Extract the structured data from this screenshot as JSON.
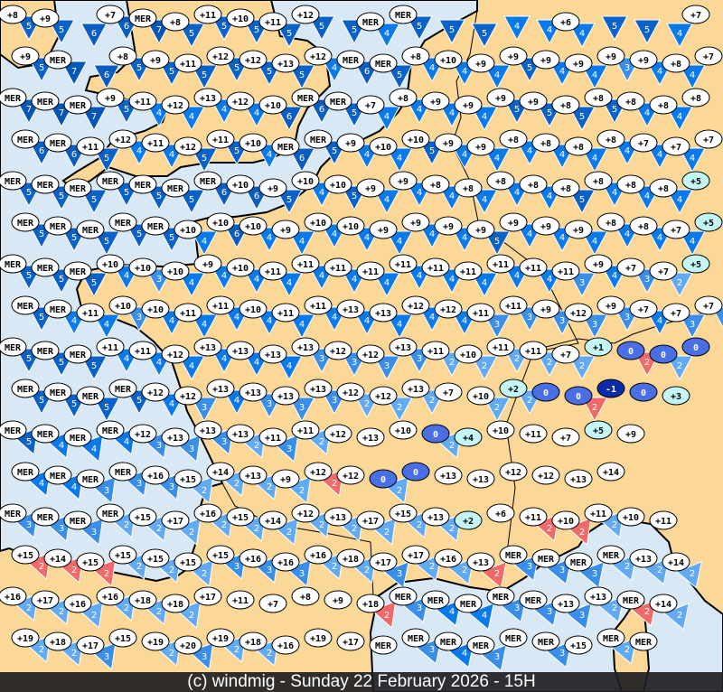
{
  "footer": {
    "text": "(c) windmig - Sunday 22 February 2026 - 15H"
  },
  "colors": {
    "sea": "#d8e8f4",
    "land": "#fcd898",
    "coast": "#000000",
    "wind": {
      "2": "#62aaf2",
      "3": "#3a8ee8",
      "4": "#0a7aea",
      "5": "#0a62c8",
      "6": "#0a5cc0",
      "7": "#0656b6"
    },
    "gust_wind": "#f06a6a",
    "temp_default": "#ffffff",
    "temp_cold": "#c4f6f6",
    "temp_zero": "#4a6ee4",
    "temp_negative": "#0a2aa8"
  },
  "legend_notes": {
    "sea_label": "MER"
  },
  "stations": [
    [
      "+8/5",
      "+9/5",
      "/6",
      "+7/6",
      "MER/7",
      "+8/5",
      "+11/5",
      "+10/5",
      "+11/5",
      "+12/5",
      "/5",
      "MER/4",
      "MER/5",
      "/5",
      "/5",
      "/4",
      "/4",
      "+6/4",
      "/5",
      "/5",
      "/4",
      "+7/"
    ],
    [
      "+9/5",
      "MER/7",
      "/6",
      "+8/5",
      "+9/5",
      "+11/5",
      "+12/5",
      "+12/5",
      "+13/5",
      "+12/4",
      "MER/6",
      "MER/5",
      "+8/4",
      "+10/4",
      "+9/4",
      "+9/5",
      "+9/4",
      "+9/4",
      "+9/3",
      "+9/4",
      "+8/4",
      "+7/"
    ],
    [
      "MER/7",
      "MER/7",
      "MER/7",
      "+9/5",
      "+11/4",
      "+12/4",
      "+13/4",
      "+12/4",
      "+10/6",
      "MER/6",
      "MER/5",
      "+7/4",
      "+8/4",
      "+9/4",
      "+9/4",
      "+9/5",
      "+9/5",
      "+8/5",
      "+8/5",
      "+8/4",
      "+8/4",
      "+8/"
    ],
    [
      "MER/6",
      "MER/6",
      "+11/5",
      "+12/4",
      "+11/4",
      "+12/5",
      "+11/5",
      "+10/4",
      "MER/6",
      "MER/5",
      "+9/4",
      "+10/4",
      "+10/5",
      "+9/4",
      "+9/4",
      "+8/4",
      "+8/4",
      "+8/4",
      "+8/4",
      "+7/4",
      "+7/4",
      "+7/"
    ],
    [
      "MER/5",
      "MER/5",
      "MER/5",
      "MER/5",
      "MER/5",
      "MER/5",
      "MER/6",
      "+10/6",
      "+9/5",
      "+10/4",
      "+10/5",
      "+9/4",
      "+9/4",
      "+8/4",
      "+8/4",
      "+8/4",
      "+8/4",
      "+8/5",
      "+8/4",
      "+8/4",
      "+8/4",
      "+5/"
    ],
    [
      "MER/5",
      "MER/5",
      "MER/5",
      "MER/5",
      "MER/5",
      "+10/4",
      "+10/6",
      "+10/4",
      "+9/4",
      "+10/4",
      "+10/4",
      "+9/4",
      "+9/4",
      "+9/4",
      "+9/5",
      "+9/4",
      "+9/4",
      "+9/4",
      "+8/4",
      "+8/4",
      "+7/4",
      "+5/"
    ],
    [
      "MER/5",
      "MER/5",
      "MER/5",
      "+10/4",
      "+10/3",
      "+10/4",
      "+9/4",
      "+10/4",
      "+11/4",
      "+11/4",
      "+11/4",
      "+11/4",
      "+11/4",
      "+11/4",
      "+11/4",
      "+11/4",
      "+11/4",
      "+11/3",
      "+9/4",
      "+7/3",
      "+7/2",
      "+5/"
    ],
    [
      "MER/5",
      "MER/4",
      "+11/4",
      "+10/3",
      "+10/4",
      "+11/4",
      "+11/4",
      "+10/4",
      "+11/4",
      "+11/4",
      "+13/4",
      "+13/4",
      "+12/4",
      "+12/4",
      "+11/3",
      "+11/3",
      "+9/3",
      "+12/3",
      "+9/3",
      "+7/4",
      "+7/3",
      "+7/3"
    ],
    [
      "MER/5",
      "MER/5",
      "MER/5",
      "+11/4",
      "+11/4",
      "+12/4",
      "+13/4",
      "+13/4",
      "+13/4",
      "+13/3",
      "+12/3",
      "+12/3",
      "+13/3",
      "+11/2",
      "+10/2",
      "+11/2",
      "+11/2",
      "+7/2",
      "+1/",
      "0/2r",
      "0/2",
      "0/"
    ],
    [
      "MER/5",
      "MER/5",
      "MER/5",
      "MER/5",
      "+12/4",
      "+12/3",
      "+13/4",
      "+13/3",
      "+13/3",
      "+13/3",
      "+12/2",
      "+12/2",
      "+13/2",
      "+7/",
      "+10/2",
      "+2/2",
      "0/",
      "0/2r",
      "-1/",
      "0/",
      "+3/",
      ""
    ],
    [
      "MER/5",
      "MER/4",
      "MER/4",
      "MER/4",
      "+12/3",
      "+13/3",
      "+13/3",
      "+13/2",
      "+11/3",
      "+11/2",
      "+12/",
      "+13/",
      "+10/",
      "0/2",
      "+4/",
      "+10/",
      "+11/",
      "+7/",
      "+5/",
      "+9/",
      "",
      ""
    ],
    [
      "MER/4",
      "MER/4",
      "MER/3",
      "MER/3",
      "+16/3",
      "+15/2",
      "+14/2",
      "+13/2",
      "+9/2",
      "+12/2r",
      "+12/",
      "0/2",
      "0/",
      "+13/",
      "+13/",
      "+12/",
      "+12/",
      "+13/",
      "+14/",
      "",
      "",
      ""
    ],
    [
      "MER/3",
      "MER/3",
      "MER/3",
      "MER/2",
      "+15/2",
      "+17/2",
      "+16/2",
      "+15/2",
      "+14/2",
      "+12/2",
      "+13/2",
      "+17/2",
      "+15/2",
      "+13/2",
      "+2/",
      "+6/",
      "+11/2r",
      "+10/2r",
      "+11/2",
      "+10/",
      "+11/",
      ""
    ],
    [
      "+15/2r",
      "+14/2r",
      "+15/2r",
      "+15/2",
      "+15/2",
      "+15/2",
      "+15/3",
      "+16/3",
      "+16/3",
      "+16/2",
      "+18/2",
      "+17/3",
      "+17/2",
      "+16/2",
      "+13/2r",
      "MER/3",
      "MER/3",
      "MER/3",
      "MER/2",
      "+13/2",
      "+14/2",
      ""
    ],
    [
      "+16/2",
      "+17/2",
      "+16/2",
      "+16/2",
      "+18/2",
      "+18/2",
      "+17/",
      "+11/",
      "+7/",
      "+8/",
      "+9/",
      "+18/2r",
      "MER/3",
      "MER/4",
      "MER/4",
      "MER/3",
      "MER/3",
      "+13/3",
      "+13/2",
      "MER/2r",
      "+14/2",
      ""
    ],
    [
      "+19/2",
      "+18/2",
      "+17/3",
      "+15/",
      "+19/2",
      "+20/3",
      "+19/2",
      "+18/2",
      "+16/",
      "+19/",
      "+17/",
      "MER/",
      "MER/3",
      "MER/4",
      "MER/3",
      "MER/",
      "MER/3",
      "+15/",
      "MER/2",
      "MER/",
      "",
      ""
    ]
  ]
}
